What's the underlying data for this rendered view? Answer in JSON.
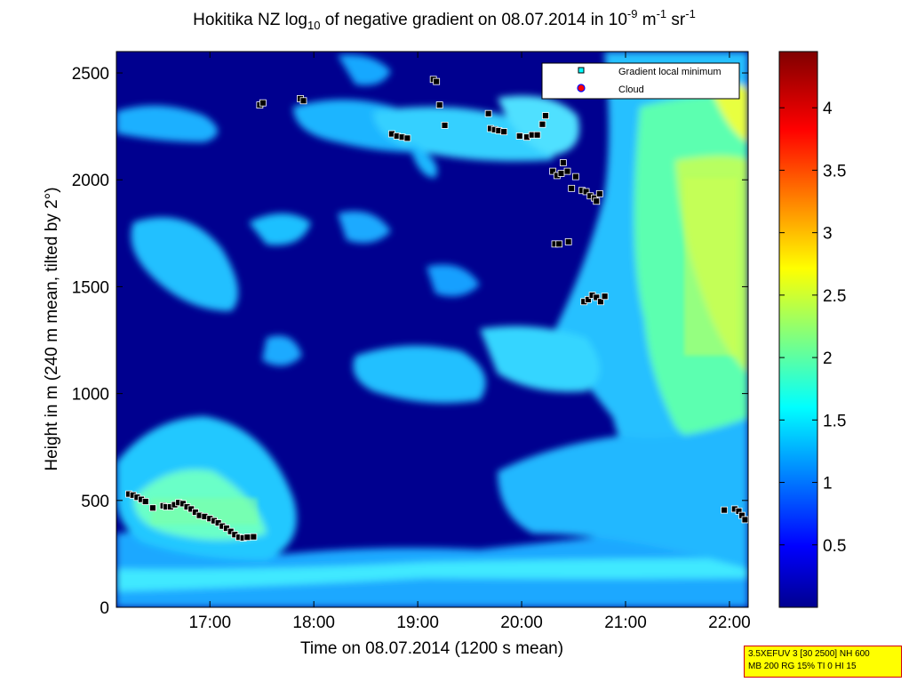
{
  "chart_data": {
    "type": "heatmap",
    "title": {
      "prefix": "Hokitika NZ log",
      "sub": "10",
      "middle": " of negative gradient on 08.07.2014 in 10",
      "sup1": "-9",
      "unit1": " m",
      "sup2": "-1",
      "unit2": " sr",
      "sup3": "-1"
    },
    "xlabel": "Time on 08.07.2014 (1200 s mean)",
    "ylabel": "Height in m (240 m mean, tilted by 2°)",
    "x_ticks": [
      "17:00",
      "18:00",
      "19:00",
      "20:00",
      "21:00",
      "22:00"
    ],
    "x_tick_hours": [
      17,
      18,
      19,
      20,
      21,
      22
    ],
    "xlim_hours": [
      16.1,
      22.18
    ],
    "y_ticks": [
      0,
      500,
      1000,
      1500,
      2000,
      2500
    ],
    "ylim": [
      0,
      2600
    ],
    "colorbar": {
      "ticks": [
        0.5,
        1,
        1.5,
        2,
        2.5,
        3,
        3.5,
        4
      ],
      "range": [
        0,
        4.45
      ],
      "colormap": "jet"
    },
    "legend": {
      "position": "top-right",
      "entries": [
        {
          "label": "Gradient local minimum",
          "marker": "square",
          "color": "#00ffff"
        },
        {
          "label": "Cloud",
          "marker": "circle",
          "color": "#ff0000"
        }
      ]
    },
    "gradient_minimum_points": [
      [
        16.22,
        530
      ],
      [
        16.26,
        525
      ],
      [
        16.3,
        515
      ],
      [
        16.34,
        505
      ],
      [
        16.38,
        495
      ],
      [
        16.45,
        465
      ],
      [
        16.55,
        475
      ],
      [
        16.58,
        470
      ],
      [
        16.62,
        470
      ],
      [
        16.66,
        480
      ],
      [
        16.7,
        490
      ],
      [
        16.74,
        485
      ],
      [
        16.78,
        470
      ],
      [
        16.82,
        460
      ],
      [
        16.86,
        445
      ],
      [
        16.9,
        430
      ],
      [
        16.95,
        425
      ],
      [
        17.0,
        415
      ],
      [
        17.04,
        405
      ],
      [
        17.08,
        395
      ],
      [
        17.12,
        380
      ],
      [
        17.16,
        370
      ],
      [
        17.2,
        355
      ],
      [
        17.24,
        340
      ],
      [
        17.28,
        328
      ],
      [
        17.32,
        325
      ],
      [
        17.36,
        328
      ],
      [
        17.42,
        330
      ],
      [
        17.48,
        2350
      ],
      [
        17.51,
        2360
      ],
      [
        17.87,
        2380
      ],
      [
        17.9,
        2370
      ],
      [
        18.75,
        2215
      ],
      [
        18.8,
        2205
      ],
      [
        18.85,
        2200
      ],
      [
        18.9,
        2195
      ],
      [
        19.15,
        2470
      ],
      [
        19.18,
        2460
      ],
      [
        19.21,
        2350
      ],
      [
        19.26,
        2255
      ],
      [
        19.68,
        2310
      ],
      [
        19.7,
        2240
      ],
      [
        19.74,
        2235
      ],
      [
        19.78,
        2230
      ],
      [
        19.83,
        2225
      ],
      [
        19.98,
        2205
      ],
      [
        20.05,
        2200
      ],
      [
        20.1,
        2210
      ],
      [
        20.15,
        2210
      ],
      [
        20.2,
        2260
      ],
      [
        20.23,
        2300
      ],
      [
        20.3,
        2040
      ],
      [
        20.34,
        2020
      ],
      [
        20.38,
        2030
      ],
      [
        20.4,
        2080
      ],
      [
        20.44,
        2040
      ],
      [
        20.48,
        1960
      ],
      [
        20.52,
        2015
      ],
      [
        20.58,
        1950
      ],
      [
        20.62,
        1945
      ],
      [
        20.66,
        1925
      ],
      [
        20.7,
        1915
      ],
      [
        20.72,
        1900
      ],
      [
        20.75,
        1935
      ],
      [
        20.32,
        1700
      ],
      [
        20.36,
        1700
      ],
      [
        20.45,
        1710
      ],
      [
        20.6,
        1430
      ],
      [
        20.64,
        1440
      ],
      [
        20.68,
        1460
      ],
      [
        20.72,
        1450
      ],
      [
        20.76,
        1430
      ],
      [
        20.8,
        1455
      ],
      [
        21.95,
        455
      ],
      [
        22.05,
        460
      ],
      [
        22.09,
        450
      ],
      [
        22.12,
        430
      ],
      [
        22.15,
        410
      ]
    ]
  },
  "settings_box": {
    "line1": "3.5XEFUV 3 [30 2500] NH 600",
    "line2": "MB 200 RG 15% TI 0 HI 15"
  }
}
